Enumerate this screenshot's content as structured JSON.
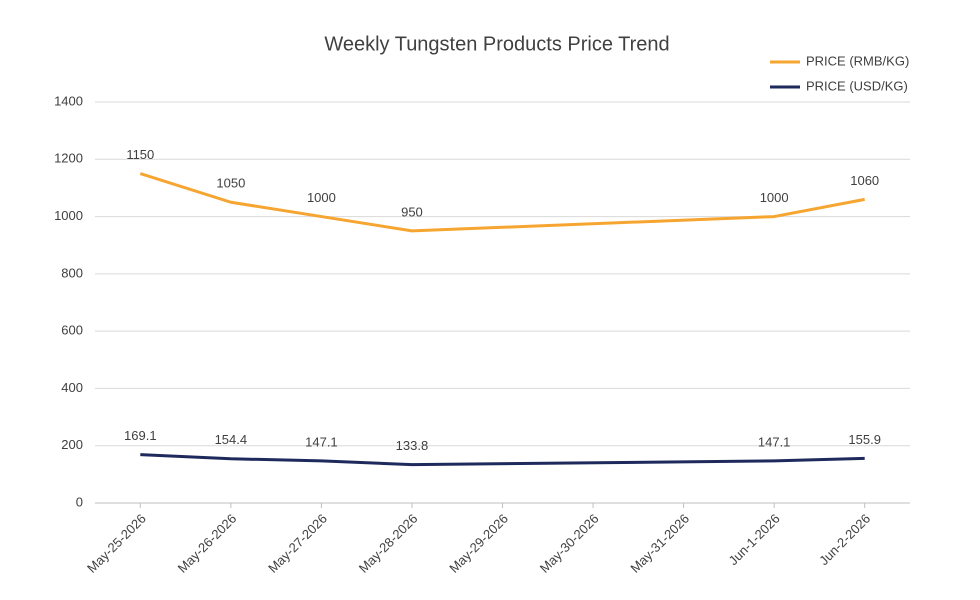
{
  "chart_data": {
    "type": "line",
    "title": "Weekly Tungsten Products Price Trend",
    "x": [
      "May-25-2026",
      "May-26-2026",
      "May-27-2026",
      "May-28-2026",
      "Jun-1-2026",
      "Jun-2-2026"
    ],
    "xlim": [
      "May-25-2026",
      "Jun-2-2026"
    ],
    "xticks": [
      "May-25-2026",
      "May-26-2026",
      "May-27-2026",
      "May-28-2026",
      "May-29-2026",
      "May-30-2026",
      "May-31-2026",
      "Jun-1-2026",
      "Jun-2-2026"
    ],
    "series": [
      {
        "name": "PRICE (RMB/KG)",
        "color": "#f5a530",
        "values": [
          1150,
          1050,
          1000,
          950,
          1000,
          1060
        ]
      },
      {
        "name": "PRICE (USD/KG)",
        "color": "#1f2a5c",
        "values": [
          169.1,
          154.4,
          147.1,
          133.8,
          147.1,
          155.9
        ]
      }
    ],
    "ylim": [
      0,
      1400
    ],
    "yticks": [
      0,
      200,
      400,
      600,
      800,
      1000,
      1200,
      1400
    ],
    "grid": true,
    "legend": "top-right"
  }
}
